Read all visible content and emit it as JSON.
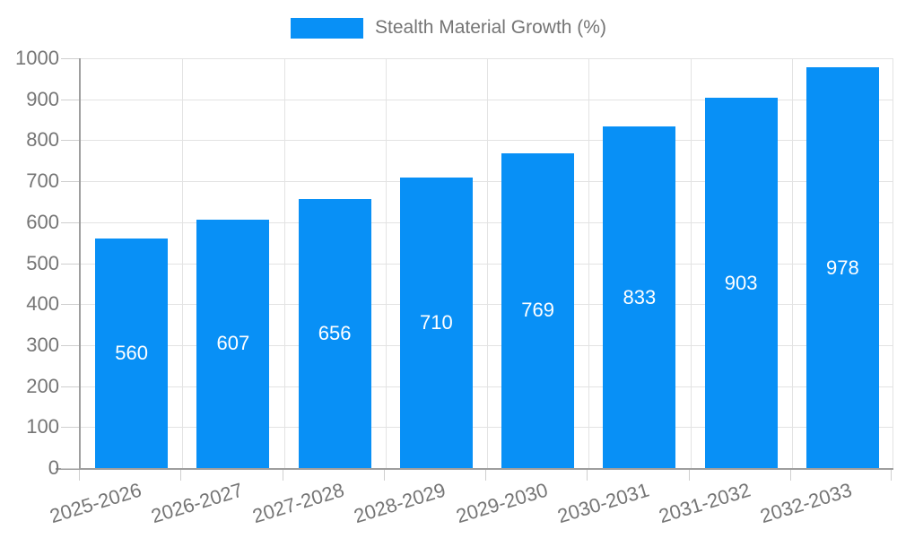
{
  "chart_data": {
    "type": "bar",
    "title": "Stealth Material Growth (%)",
    "categories": [
      "2025-2026",
      "2026-2027",
      "2027-2028",
      "2028-2029",
      "2029-2030",
      "2030-2031",
      "2031-2032",
      "2032-2033"
    ],
    "values": [
      560,
      607,
      656,
      710,
      769,
      833,
      903,
      978
    ],
    "xlabel": "",
    "ylabel": "",
    "ylim": [
      0,
      1000
    ],
    "ytick_step": 100,
    "yticks": [
      0,
      100,
      200,
      300,
      400,
      500,
      600,
      700,
      800,
      900,
      1000
    ],
    "grid": true,
    "legend_position": "top-center",
    "bar_color": "#0890f6",
    "value_label_color": "#ffffff",
    "axis_text_color": "#757575",
    "grid_color": "#e3e3e3",
    "axis_line_color": "#9e9e9e"
  }
}
